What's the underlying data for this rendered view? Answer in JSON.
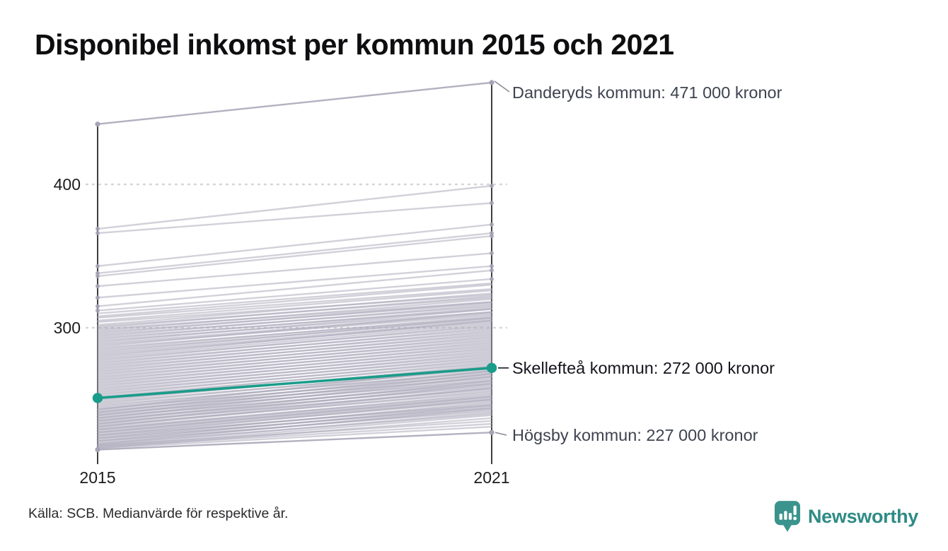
{
  "title": "Disponibel inkomst per kommun 2015 och 2021",
  "source": "Källa: SCB. Medianvärde för respektive år.",
  "logo": {
    "brand": "Newsworthy"
  },
  "colors": {
    "accent": "#1a9c8a",
    "line": "#a5a3b5",
    "axis": "#1d1d1f",
    "grid": "#d4d4d6",
    "leader_gray": "#8d8d97",
    "leader_dark": "#2b2b34",
    "logo_teal": "#3a938c",
    "wordmark_teal": "#2f8b85"
  },
  "axis": {
    "y_ticks": [
      "400",
      "300"
    ],
    "x_ticks": [
      "2015",
      "2021"
    ]
  },
  "chart_data": {
    "type": "line",
    "subtype": "slope-graph",
    "x_categories": [
      "2015",
      "2021"
    ],
    "y_unit": "tusen kronor (values are 1000 SEK, medians per municipality)",
    "y_ticks": [
      400,
      300
    ],
    "ylim": [
      210,
      480
    ],
    "grid": "dotted horizontal at y ticks",
    "annotated": [
      {
        "name": "Danderyds kommun",
        "values": [
          442,
          471
        ],
        "label": "Danderyds kommun: 471 000 kronor",
        "highlighted": false
      },
      {
        "name": "Skellefteå kommun",
        "values": [
          251,
          272
        ],
        "label": "Skellefteå kommun: 272 000 kronor",
        "highlighted": true
      },
      {
        "name": "Högsby kommun",
        "values": [
          215,
          227
        ],
        "label": "Högsby kommun: 227 000 kronor",
        "highlighted": false
      }
    ],
    "background_lines": [
      [
        369,
        399
      ],
      [
        366,
        387
      ],
      [
        343,
        372
      ],
      [
        338,
        366
      ],
      [
        336,
        364
      ],
      [
        329,
        352
      ],
      [
        321,
        343
      ],
      [
        315,
        340
      ],
      [
        312,
        334
      ],
      [
        310,
        331
      ],
      [
        308,
        330
      ],
      [
        307,
        327
      ],
      [
        305,
        326
      ],
      [
        304,
        323
      ],
      [
        302,
        324
      ],
      [
        301,
        321
      ],
      [
        300,
        322
      ],
      [
        299,
        318
      ],
      [
        298,
        320
      ],
      [
        297,
        317
      ],
      [
        296,
        318
      ],
      [
        295,
        315
      ],
      [
        294,
        316
      ],
      [
        293,
        313
      ],
      [
        292,
        314
      ],
      [
        291,
        311
      ],
      [
        290,
        313
      ],
      [
        289,
        310
      ],
      [
        288,
        309
      ],
      [
        287,
        311
      ],
      [
        286,
        307
      ],
      [
        285,
        308
      ],
      [
        284,
        306
      ],
      [
        283,
        307
      ],
      [
        282,
        305
      ],
      [
        281,
        304
      ],
      [
        280,
        305
      ],
      [
        279,
        303
      ],
      [
        278,
        301
      ],
      [
        277,
        302
      ],
      [
        276,
        299
      ],
      [
        275,
        300
      ],
      [
        274,
        297
      ],
      [
        273,
        298
      ],
      [
        272,
        295
      ],
      [
        271,
        296
      ],
      [
        270,
        293
      ],
      [
        269,
        294
      ],
      [
        268,
        291
      ],
      [
        267,
        292
      ],
      [
        266,
        289
      ],
      [
        265,
        290
      ],
      [
        264,
        287
      ],
      [
        263,
        288
      ],
      [
        262,
        285
      ],
      [
        261,
        286
      ],
      [
        260,
        283
      ],
      [
        259,
        284
      ],
      [
        258,
        281
      ],
      [
        257,
        282
      ],
      [
        256,
        279
      ],
      [
        255,
        280
      ],
      [
        254,
        277
      ],
      [
        253,
        278
      ],
      [
        252,
        275
      ],
      [
        251,
        276
      ],
      [
        250,
        273
      ],
      [
        249,
        274
      ],
      [
        248,
        271
      ],
      [
        247,
        272
      ],
      [
        246,
        269
      ],
      [
        245,
        270
      ],
      [
        244,
        267
      ],
      [
        243,
        268
      ],
      [
        242,
        265
      ],
      [
        241,
        266
      ],
      [
        240,
        263
      ],
      [
        239,
        264
      ],
      [
        238,
        261
      ],
      [
        237,
        262
      ],
      [
        236,
        259
      ],
      [
        235,
        260
      ],
      [
        234,
        257
      ],
      [
        233,
        258
      ],
      [
        232,
        255
      ],
      [
        231,
        256
      ],
      [
        230,
        253
      ],
      [
        229,
        254
      ],
      [
        228,
        251
      ],
      [
        227,
        252
      ],
      [
        226,
        249
      ],
      [
        225,
        250
      ],
      [
        224,
        247
      ],
      [
        223,
        248
      ],
      [
        222,
        245
      ],
      [
        221,
        246
      ],
      [
        220,
        243
      ],
      [
        219,
        244
      ],
      [
        218,
        241
      ],
      [
        217,
        239
      ],
      [
        216,
        237
      ],
      [
        218,
        235
      ],
      [
        217,
        233
      ],
      [
        216,
        231
      ],
      [
        219,
        240
      ],
      [
        221,
        242
      ],
      [
        223,
        244
      ],
      [
        225,
        246
      ],
      [
        227,
        250
      ],
      [
        229,
        252
      ],
      [
        231,
        258
      ],
      [
        233,
        261
      ],
      [
        235,
        263
      ],
      [
        237,
        266
      ],
      [
        239,
        268
      ],
      [
        241,
        270
      ],
      [
        243,
        273
      ]
    ]
  }
}
